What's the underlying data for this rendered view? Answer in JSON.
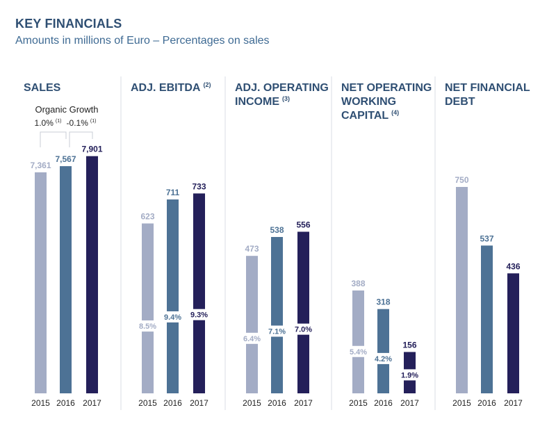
{
  "header": {
    "title": "KEY FINANCIALS",
    "subtitle": "Amounts in millions of Euro – Percentages on sales"
  },
  "colors": {
    "y2015": "#a3acc5",
    "y2016": "#4d7295",
    "y2017": "#24205a",
    "title": "#2f4f73",
    "divider": "#d9dde6"
  },
  "organic_growth": {
    "label": "Organic Growth",
    "items": [
      {
        "value": "1.0%",
        "note": "(1)"
      },
      {
        "value": "-0.1%",
        "note": "(1)"
      }
    ]
  },
  "chart_data": [
    {
      "type": "bar",
      "title": "SALES",
      "title_lines": [
        "SALES"
      ],
      "title_note": "",
      "categories": [
        "2015",
        "2016",
        "2017"
      ],
      "values": [
        7361,
        7567,
        7901
      ],
      "value_labels": [
        "7,361",
        "7,567",
        "7,901"
      ],
      "pct_labels": []
    },
    {
      "type": "bar",
      "title": "ADJ. EBITDA (2)",
      "title_lines": [
        "ADJ. EBITDA"
      ],
      "title_note": "(2)",
      "categories": [
        "2015",
        "2016",
        "2017"
      ],
      "values": [
        623,
        711,
        733
      ],
      "value_labels": [
        "623",
        "711",
        "733"
      ],
      "pct_labels": [
        "8.5%",
        "9.4%",
        "9.3%"
      ]
    },
    {
      "type": "bar",
      "title": "ADJ. OPERATING INCOME (3)",
      "title_lines": [
        "ADJ. OPERATING",
        "INCOME"
      ],
      "title_note": "(3)",
      "categories": [
        "2015",
        "2016",
        "2017"
      ],
      "values": [
        473,
        538,
        556
      ],
      "value_labels": [
        "473",
        "538",
        "556"
      ],
      "pct_labels": [
        "6.4%",
        "7.1%",
        "7.0%"
      ]
    },
    {
      "type": "bar",
      "title": "NET OPERATING WORKING CAPITAL (4)",
      "title_lines": [
        "NET OPERATING",
        "WORKING",
        "CAPITAL"
      ],
      "title_note": "(4)",
      "categories": [
        "2015",
        "2016",
        "2017"
      ],
      "values": [
        388,
        318,
        156
      ],
      "value_labels": [
        "388",
        "318",
        "156"
      ],
      "pct_labels": [
        "5.4%",
        "4.2%",
        "1.9%"
      ]
    },
    {
      "type": "bar",
      "title": "NET FINANCIAL DEBT",
      "title_lines": [
        "NET FINANCIAL",
        "DEBT"
      ],
      "title_note": "",
      "categories": [
        "2015",
        "2016",
        "2017"
      ],
      "values": [
        750,
        537,
        436
      ],
      "value_labels": [
        "750",
        "537",
        "436"
      ],
      "pct_labels": []
    }
  ]
}
